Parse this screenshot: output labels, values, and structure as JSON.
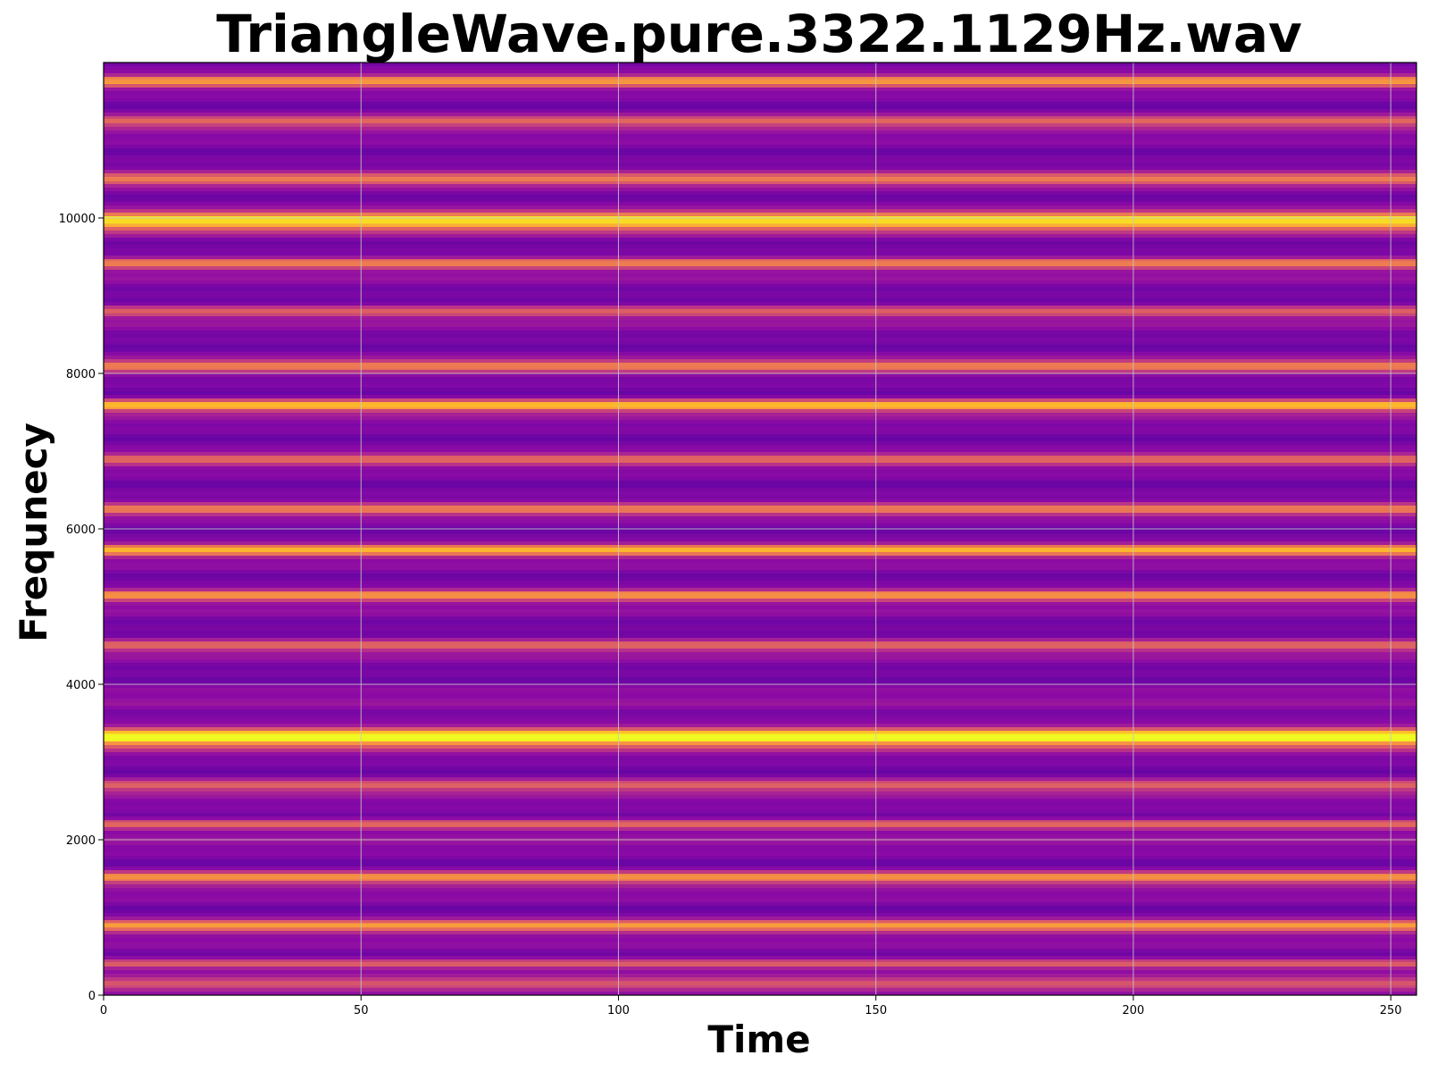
{
  "chart_data": {
    "type": "heatmap",
    "title": "TriangleWave.pure.3322.1129Hz.wav",
    "xlabel": "Time",
    "ylabel": "Frequnecy",
    "xlim": [
      0,
      255
    ],
    "ylim": [
      0,
      12000
    ],
    "xticks": [
      0,
      50,
      100,
      150,
      200,
      250
    ],
    "yticks": [
      0,
      2000,
      4000,
      6000,
      8000,
      10000
    ],
    "grid": true,
    "colormap": "plasma",
    "colors": {
      "background_level": "#7a10a6",
      "peak_level": "#fde725",
      "grid": "#c8c8c8"
    },
    "bands": [
      {
        "frequency": 3322,
        "intensity": 1.0
      },
      {
        "frequency": 9966,
        "intensity": 0.9
      },
      {
        "frequency": 7590,
        "intensity": 0.8
      },
      {
        "frequency": 5730,
        "intensity": 0.78
      },
      {
        "frequency": 900,
        "intensity": 0.7
      },
      {
        "frequency": 1520,
        "intensity": 0.66
      },
      {
        "frequency": 5150,
        "intensity": 0.64
      },
      {
        "frequency": 11760,
        "intensity": 0.66
      },
      {
        "frequency": 9420,
        "intensity": 0.55
      },
      {
        "frequency": 8100,
        "intensity": 0.55
      },
      {
        "frequency": 6250,
        "intensity": 0.52
      },
      {
        "frequency": 10500,
        "intensity": 0.55
      },
      {
        "frequency": 11250,
        "intensity": 0.45
      },
      {
        "frequency": 2200,
        "intensity": 0.45
      },
      {
        "frequency": 4500,
        "intensity": 0.42
      },
      {
        "frequency": 2700,
        "intensity": 0.42
      },
      {
        "frequency": 6900,
        "intensity": 0.42
      },
      {
        "frequency": 8800,
        "intensity": 0.4
      },
      {
        "frequency": 400,
        "intensity": 0.4
      },
      {
        "frequency": 150,
        "intensity": 0.35
      }
    ]
  }
}
